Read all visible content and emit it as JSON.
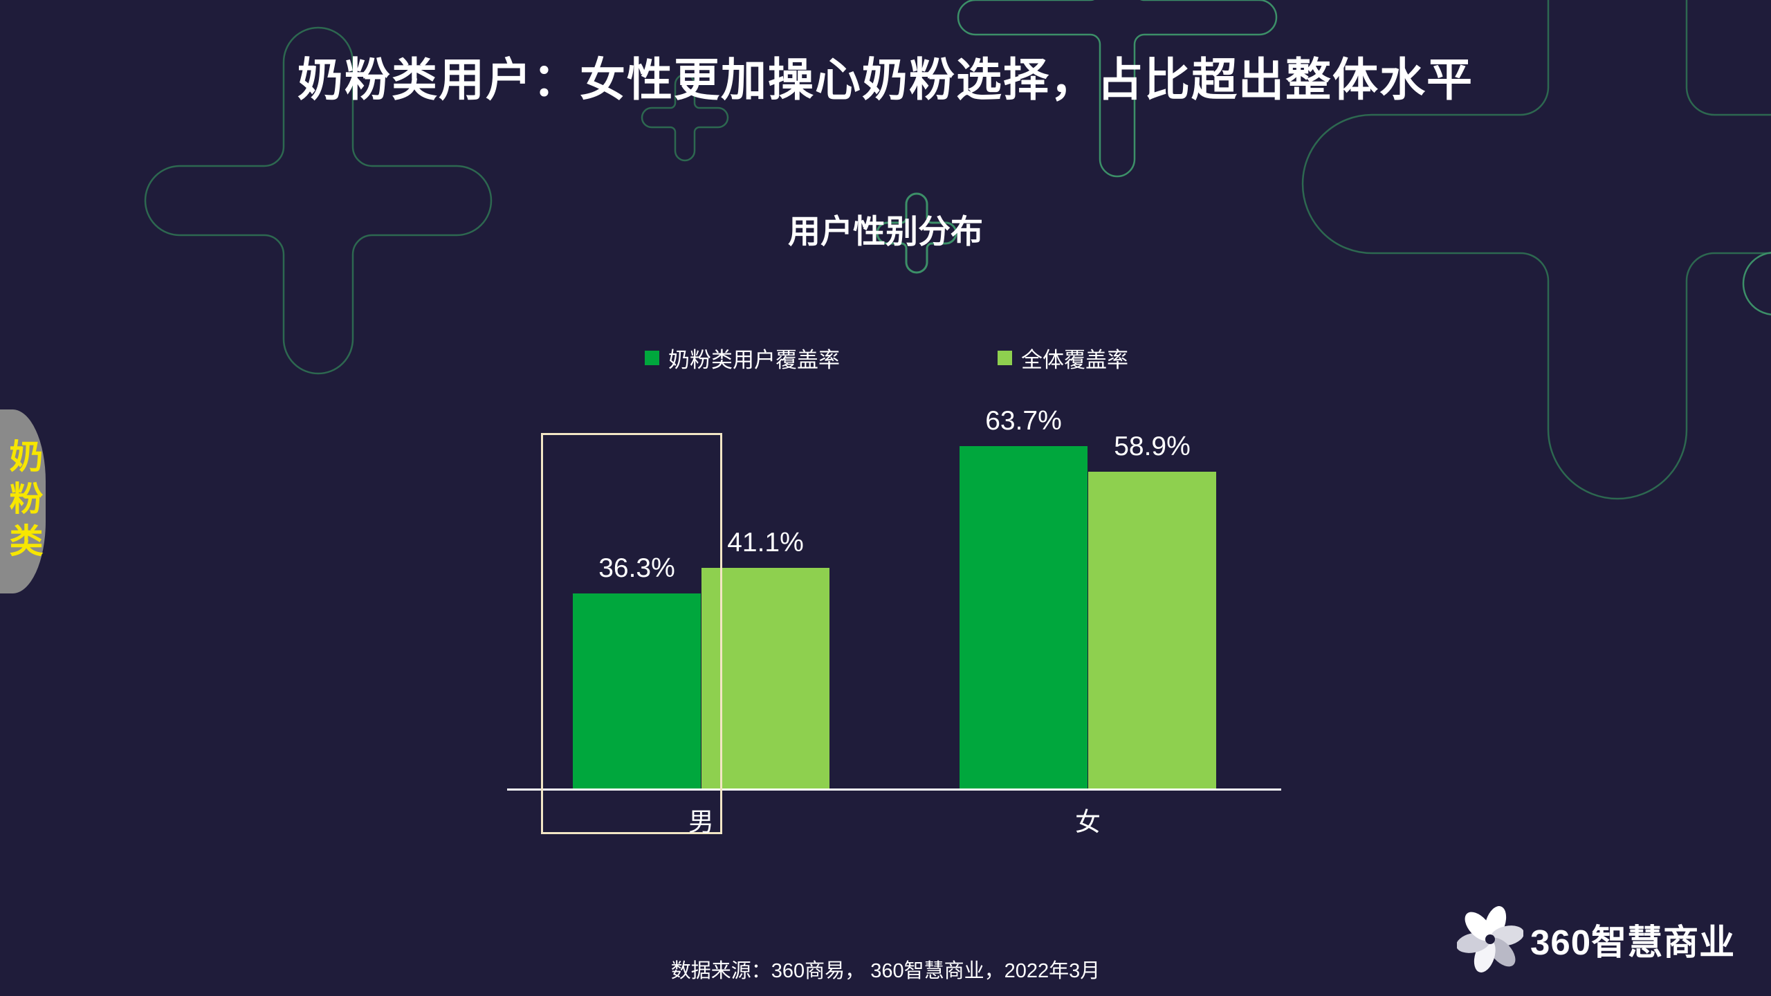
{
  "slide": {
    "title": "奶粉类用户：女性更加操心奶粉选择，占比超出整体水平",
    "side_tab_label": "奶粉类",
    "source": "数据来源：360商易， 360智慧商业，2022年3月",
    "logo_text": "360智慧商业"
  },
  "chart_data": {
    "type": "bar",
    "title": "用户性别分布",
    "categories": [
      "男",
      "女"
    ],
    "series": [
      {
        "name": "奶粉类用户覆盖率",
        "color": "#00a73d",
        "values": [
          36.3,
          63.7
        ]
      },
      {
        "name": "全体覆盖率",
        "color": "#8ed04f",
        "values": [
          41.1,
          58.9
        ]
      }
    ],
    "value_labels": [
      [
        "36.3%",
        "63.7%"
      ],
      [
        "41.1%",
        "58.9%"
      ]
    ],
    "value_format": "percent",
    "ylim": [
      0,
      100
    ],
    "grid": false,
    "legend_position": "top",
    "highlighted_category": "男"
  },
  "colors": {
    "background": "#1f1c3a",
    "bar_primary": "#00a73d",
    "bar_secondary": "#8ed04f",
    "axis": "#ffffff",
    "highlight_box": "#f2e6c5",
    "text": "#ffffff",
    "side_tab_bg": "#8a8a8a",
    "side_tab_text": "#f7e600",
    "cross_outline_dark": "#2d6850",
    "cross_outline_bright": "#3c8f68"
  }
}
